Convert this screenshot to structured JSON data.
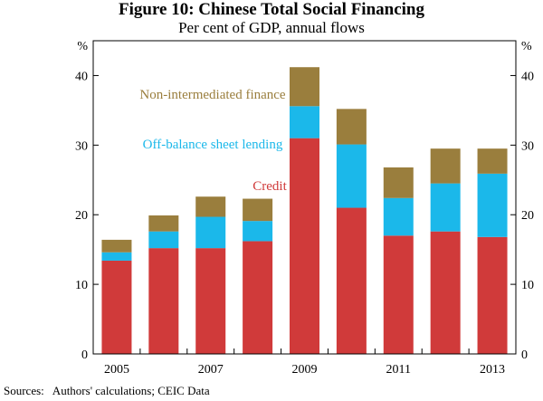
{
  "title": "Figure 10: Chinese Total Social Financing",
  "subtitle": "Per cent of GDP, annual flows",
  "source": "Sources:   Authors' calculations; CEIC Data",
  "colors": {
    "credit": "#d03a3a",
    "off_balance": "#1bb8ea",
    "non_intermediated": "#9a7e3d",
    "axis": "#000000"
  },
  "chart_data": {
    "type": "bar",
    "stacked": true,
    "categories": [
      "2005",
      "2006",
      "2007",
      "2008",
      "2009",
      "2010",
      "2011",
      "2012",
      "2013"
    ],
    "x_tick_labels": [
      "2005",
      "",
      "2007",
      "",
      "2009",
      "",
      "2011",
      "",
      "2013"
    ],
    "series": [
      {
        "name": "Credit",
        "values": [
          13.4,
          15.2,
          15.2,
          16.2,
          31.0,
          21.0,
          17.0,
          17.6,
          16.8
        ]
      },
      {
        "name": "Off-balance sheet lending",
        "values": [
          1.2,
          2.4,
          4.5,
          2.9,
          4.6,
          9.1,
          5.4,
          6.9,
          9.1
        ]
      },
      {
        "name": "Non-intermediated finance",
        "values": [
          1.8,
          2.3,
          2.9,
          3.2,
          5.6,
          5.1,
          4.4,
          5.0,
          3.6
        ]
      }
    ],
    "ylim": [
      0,
      45
    ],
    "yticks": [
      0,
      10,
      20,
      30,
      40
    ],
    "ylabel_left": "%",
    "ylabel_right": "%",
    "legend": "inline labels above bars"
  }
}
